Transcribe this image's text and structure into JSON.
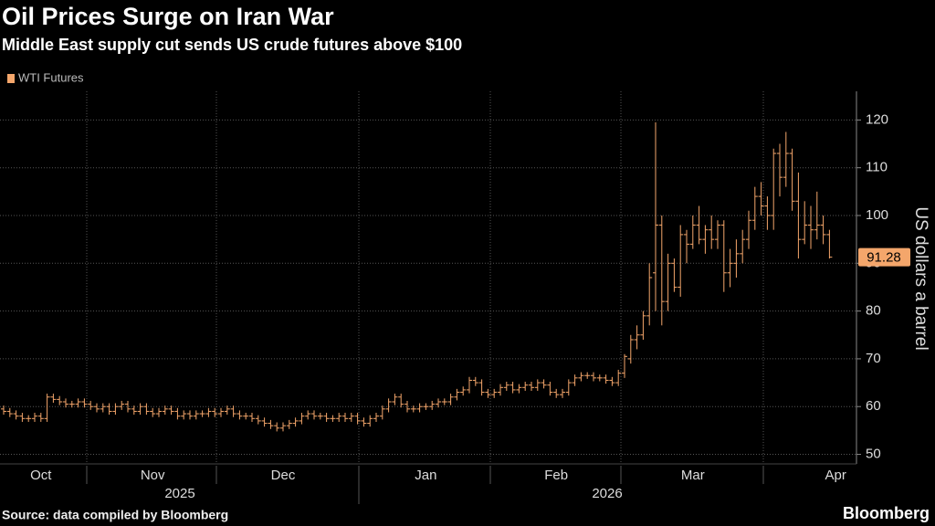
{
  "chart_data": {
    "type": "ohlc",
    "title": "Oil Prices Surge on Iran War",
    "subtitle": "Middle East supply cut sends US crude futures above $100",
    "y_label": "US dollars a barrel",
    "source": "Source: data compiled by Bloomberg",
    "brand": "Bloomberg",
    "year_labels": [
      "2025",
      "2026"
    ],
    "ylim": [
      48,
      126
    ],
    "yticks": [
      50,
      60,
      70,
      80,
      90,
      100,
      110,
      120
    ],
    "grid": true,
    "categories": [
      null,
      null,
      null,
      null,
      null,
      null,
      "Oct",
      null,
      null,
      null,
      null,
      null,
      null,
      null,
      null,
      null,
      null,
      null,
      null,
      null,
      null,
      null,
      null,
      null,
      "Nov",
      null,
      null,
      null,
      null,
      null,
      null,
      null,
      null,
      null,
      null,
      null,
      null,
      null,
      null,
      null,
      null,
      null,
      null,
      null,
      null,
      "Dec",
      null,
      null,
      null,
      null,
      null,
      null,
      null,
      null,
      null,
      null,
      null,
      null,
      null,
      null,
      null,
      null,
      null,
      null,
      null,
      null,
      null,
      null,
      "Jan",
      null,
      null,
      null,
      null,
      null,
      null,
      null,
      null,
      null,
      null,
      null,
      null,
      null,
      null,
      null,
      null,
      null,
      null,
      null,
      null,
      "Feb",
      null,
      null,
      null,
      null,
      null,
      null,
      null,
      null,
      null,
      null,
      null,
      null,
      null,
      null,
      null,
      null,
      null,
      null,
      null,
      null,
      null,
      "Mar",
      null,
      null,
      null,
      null,
      null,
      null,
      null,
      null,
      null,
      null,
      null,
      null,
      null,
      null,
      null,
      null,
      null,
      null,
      null,
      null,
      null,
      null,
      "Apr"
    ],
    "series": [
      {
        "name": "WTI Futures",
        "color": "#f4a66b",
        "last_label": "91.28",
        "open": [
          59.5,
          59,
          58.5,
          58,
          57.5,
          57.5,
          58,
          57.5,
          62,
          61.5,
          61,
          60.5,
          60.5,
          61,
          60.5,
          60,
          59.5,
          60,
          59,
          60,
          60.5,
          59.5,
          59,
          60,
          59,
          58.5,
          59,
          59.5,
          59,
          58,
          58.5,
          58,
          58.5,
          58.5,
          59,
          58.5,
          59,
          59.5,
          58.5,
          58,
          58,
          57.5,
          57,
          56.5,
          56,
          55.5,
          56,
          56.5,
          57,
          58,
          58.5,
          58,
          58,
          57.5,
          57.5,
          58,
          57.5,
          58,
          57,
          56.5,
          57.5,
          58,
          59.5,
          61,
          62,
          60.5,
          59.5,
          59.5,
          60,
          60,
          60.5,
          61,
          61,
          62,
          63,
          63.5,
          65.5,
          65,
          63,
          62.5,
          63,
          64,
          64.5,
          63.5,
          64,
          64.5,
          64,
          65,
          64.5,
          63,
          62.5,
          63,
          65,
          66,
          66.5,
          66.5,
          66,
          66,
          65.5,
          65,
          67,
          70,
          74,
          75,
          79,
          88,
          98,
          82,
          90,
          85,
          96,
          94,
          98,
          95,
          97,
          95,
          98,
          88,
          90,
          92,
          95,
          99,
          104,
          102,
          100,
          113,
          108,
          113,
          103,
          95,
          98,
          97,
          98,
          96,
          null
        ],
        "high": [
          60.2,
          59.7,
          59.2,
          58.7,
          58.2,
          58.7,
          58.7,
          62.7,
          62.7,
          62.2,
          61.7,
          61.2,
          61.7,
          61.7,
          61.2,
          60.7,
          60.7,
          60.7,
          60.7,
          61.2,
          61.2,
          60.2,
          60.7,
          60.7,
          59.7,
          59.7,
          60.2,
          60.2,
          59.7,
          59.2,
          59.2,
          59.2,
          59.2,
          59.7,
          59.7,
          59.7,
          60.2,
          60.2,
          59.2,
          58.7,
          58.7,
          58.2,
          57.7,
          57.2,
          56.7,
          56.7,
          57.2,
          57.7,
          58.7,
          59.2,
          59.2,
          58.7,
          58.7,
          58.2,
          58.7,
          58.7,
          58.7,
          58.7,
          57.7,
          58.2,
          58.7,
          60.2,
          61.7,
          62.7,
          62.7,
          61.2,
          60.2,
          60.7,
          60.7,
          61.2,
          61.7,
          61.7,
          62.7,
          63.7,
          64.2,
          66.2,
          66.2,
          65.7,
          63.7,
          63.7,
          64.7,
          65.2,
          65.2,
          64.7,
          65.2,
          65.2,
          65.7,
          65.7,
          65.2,
          63.7,
          63.7,
          65.7,
          66.7,
          67.2,
          67.2,
          67.2,
          66.7,
          66.7,
          66.2,
          67.7,
          71,
          75,
          77,
          80,
          90,
          119.5,
          100,
          92,
          91,
          98,
          97,
          100,
          102,
          98,
          100,
          99,
          99,
          93,
          95,
          97,
          101,
          106,
          107,
          104,
          114,
          115,
          117.5,
          114,
          109,
          103,
          102,
          105,
          100,
          97,
          null
        ],
        "low": [
          58.3,
          57.8,
          57.3,
          56.8,
          56.8,
          56.8,
          56.8,
          56.8,
          60.8,
          60.3,
          59.8,
          59.8,
          59.8,
          59.8,
          59.3,
          58.8,
          58.8,
          58.3,
          58.3,
          59.3,
          58.8,
          58.3,
          58.3,
          58.3,
          57.8,
          57.8,
          58.3,
          58.3,
          57.3,
          57.3,
          57.3,
          57.3,
          57.8,
          57.8,
          57.8,
          57.8,
          58.3,
          57.8,
          57.3,
          57.3,
          56.8,
          56.3,
          55.8,
          55.3,
          54.8,
          54.8,
          55.3,
          55.8,
          56.3,
          57.3,
          57.3,
          57.3,
          56.8,
          56.8,
          56.8,
          56.8,
          56.8,
          56.3,
          55.8,
          55.8,
          56.8,
          57.3,
          58.8,
          60.3,
          59.8,
          58.8,
          58.8,
          58.8,
          59.3,
          59.3,
          59.8,
          60.3,
          60.3,
          61.3,
          62.3,
          62.8,
          64.3,
          62.3,
          61.8,
          61.8,
          62.3,
          63.3,
          62.8,
          62.8,
          63.3,
          63.3,
          63.3,
          63.8,
          62.3,
          61.8,
          61.8,
          62.3,
          64.3,
          65.3,
          65.8,
          65.3,
          65.3,
          64.8,
          64.3,
          64.3,
          66,
          69,
          72,
          74,
          77,
          80,
          77,
          80,
          84,
          83,
          90,
          93,
          94,
          92,
          93,
          93,
          84,
          85,
          87,
          90,
          93,
          97,
          100,
          97,
          97,
          104,
          106,
          101,
          91,
          94,
          93,
          95,
          94,
          91,
          null
        ],
        "close": [
          59,
          58.5,
          58,
          57.5,
          57.5,
          58,
          57.5,
          62,
          61.5,
          61,
          60.5,
          60.5,
          61,
          60.5,
          60,
          59.5,
          60,
          59,
          60,
          60.5,
          59.5,
          59,
          60,
          59,
          58.5,
          59,
          59.5,
          59,
          58,
          58.5,
          58,
          58.5,
          58.5,
          59,
          58.5,
          59,
          59.5,
          58.5,
          58,
          58,
          57.5,
          57,
          56.5,
          56,
          55.5,
          56,
          56.5,
          57,
          58,
          58.5,
          58,
          58,
          57.5,
          57.5,
          58,
          57.5,
          58,
          57,
          56.5,
          57.5,
          58,
          59.5,
          61,
          62,
          60.5,
          59.5,
          59.5,
          60,
          60,
          60.5,
          61,
          61,
          62,
          63,
          63.5,
          65.5,
          65,
          63,
          62.5,
          63,
          64,
          64.5,
          63.5,
          64,
          64.5,
          64,
          65,
          64.5,
          63,
          62.5,
          63,
          65,
          66,
          66.5,
          66.5,
          66,
          66,
          65.5,
          65,
          67,
          70.5,
          74,
          75,
          79,
          87,
          98,
          82,
          90,
          85,
          96,
          94,
          98,
          95,
          97,
          95,
          98,
          88,
          90,
          92,
          95,
          99,
          104,
          102,
          100,
          113,
          108,
          113,
          103,
          95,
          98,
          97,
          98,
          96,
          91.28,
          null
        ]
      }
    ]
  }
}
